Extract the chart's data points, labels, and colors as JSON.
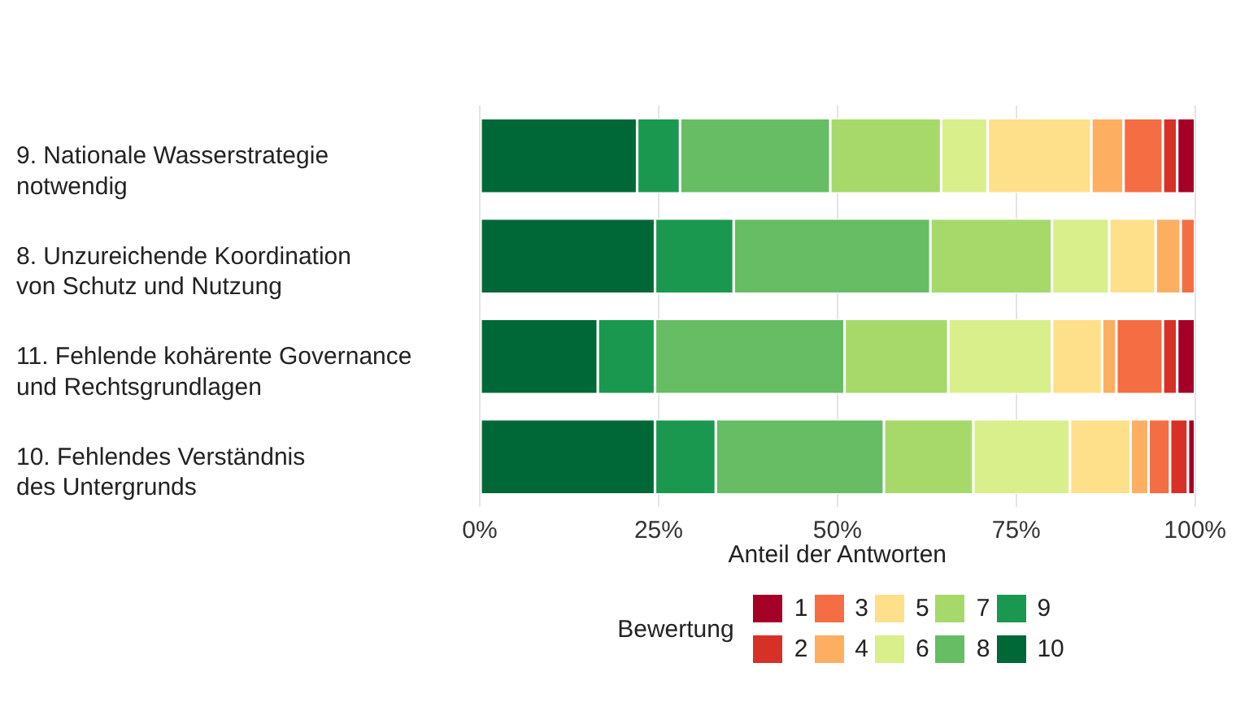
{
  "chart_data": {
    "type": "bar",
    "orientation": "horizontal",
    "stacked": true,
    "categories": [
      "9. Nationale Wasserstrategie\nnotwendig",
      "8. Unzureichende Koordination\nvon Schutz und Nutzung",
      "11. Fehlende kohärente Governance\nund Rechtsgrundlagen",
      "10. Fehlendes Verständnis\ndes Untergrunds"
    ],
    "xlabel": "Anteil der Antworten",
    "xlim": [
      0,
      100
    ],
    "xticks": [
      {
        "value": 0,
        "label": "0%"
      },
      {
        "value": 25,
        "label": "25%"
      },
      {
        "value": 50,
        "label": "50%"
      },
      {
        "value": 75,
        "label": "75%"
      },
      {
        "value": 100,
        "label": "100%"
      }
    ],
    "grid": "x",
    "legend": "bottom",
    "legend_title": "Bewertung",
    "series": [
      {
        "name": "10",
        "color": "#006837",
        "values": [
          22,
          24.5,
          16.5,
          24.5
        ]
      },
      {
        "name": "9",
        "color": "#1a9850",
        "values": [
          6,
          11,
          8,
          8.5
        ]
      },
      {
        "name": "8",
        "color": "#66bd63",
        "values": [
          21,
          27.5,
          26.5,
          23.5
        ]
      },
      {
        "name": "7",
        "color": "#a6d96a",
        "values": [
          15.5,
          17,
          14.5,
          12.5
        ]
      },
      {
        "name": "6",
        "color": "#d9ef8b",
        "values": [
          6.5,
          8,
          14.5,
          13.5
        ]
      },
      {
        "name": "5",
        "color": "#fee08b",
        "values": [
          14.5,
          6.5,
          7,
          8.5
        ]
      },
      {
        "name": "4",
        "color": "#fdae61",
        "values": [
          4.5,
          3.5,
          2,
          2.5
        ]
      },
      {
        "name": "3",
        "color": "#f46d43",
        "values": [
          5.5,
          2,
          6.5,
          3
        ]
      },
      {
        "name": "2",
        "color": "#d73027",
        "values": [
          2,
          0,
          2,
          2.5
        ]
      },
      {
        "name": "1",
        "color": "#a50026",
        "values": [
          2.5,
          0,
          2.5,
          1
        ]
      }
    ]
  }
}
